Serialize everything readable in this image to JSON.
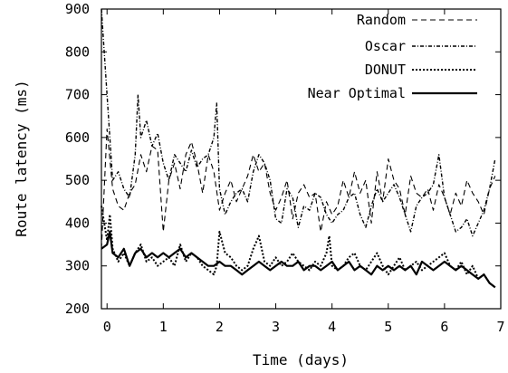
{
  "chart_data": {
    "type": "line",
    "title": "",
    "xlabel": "Time (days)",
    "ylabel": "Route latency (ms)",
    "xlim": [
      -0.1,
      7
    ],
    "ylim": [
      200,
      900
    ],
    "x_ticks": [
      "0",
      "1",
      "2",
      "3",
      "4",
      "5",
      "6",
      "7"
    ],
    "y_ticks": [
      "200",
      "300",
      "400",
      "500",
      "600",
      "700",
      "800",
      "900"
    ],
    "grid": false,
    "legend_position": "top-right",
    "series": [
      {
        "name": "Random",
        "style": "dashed",
        "x": [
          -0.1,
          0,
          0.1,
          0.2,
          0.3,
          0.4,
          0.5,
          0.6,
          0.7,
          0.8,
          0.9,
          1,
          1.1,
          1.2,
          1.3,
          1.4,
          1.5,
          1.6,
          1.7,
          1.8,
          1.9,
          2,
          2.1,
          2.2,
          2.3,
          2.4,
          2.5,
          2.6,
          2.7,
          2.8,
          2.9,
          3,
          3.1,
          3.2,
          3.3,
          3.4,
          3.5,
          3.6,
          3.7,
          3.8,
          3.9,
          4,
          4.1,
          4.2,
          4.3,
          4.4,
          4.5,
          4.6,
          4.7,
          4.8,
          4.9,
          5,
          5.1,
          5.2,
          5.3,
          5.4,
          5.5,
          5.6,
          5.7,
          5.8,
          5.9,
          6,
          6.1,
          6.2,
          6.3,
          6.4,
          6.5,
          6.6,
          6.7,
          6.8,
          6.9
        ],
        "y": [
          340,
          620,
          480,
          440,
          430,
          470,
          490,
          560,
          520,
          580,
          570,
          380,
          500,
          540,
          480,
          560,
          590,
          540,
          470,
          560,
          520,
          430,
          470,
          500,
          450,
          480,
          510,
          560,
          520,
          540,
          470,
          430,
          460,
          500,
          410,
          470,
          490,
          460,
          470,
          380,
          450,
          420,
          440,
          500,
          460,
          520,
          470,
          500,
          400,
          520,
          450,
          550,
          500,
          480,
          420,
          510,
          470,
          460,
          480,
          430,
          490,
          460,
          420,
          470,
          440,
          500,
          470,
          450,
          420,
          480,
          510
        ]
      },
      {
        "name": "Oscar",
        "style": "dash-dot",
        "x": [
          -0.1,
          -0.05,
          0,
          0.1,
          0.2,
          0.3,
          0.4,
          0.5,
          0.55,
          0.6,
          0.7,
          0.8,
          0.9,
          1,
          1.1,
          1.2,
          1.3,
          1.4,
          1.5,
          1.6,
          1.7,
          1.8,
          1.9,
          1.95,
          2,
          2.1,
          2.2,
          2.3,
          2.4,
          2.5,
          2.6,
          2.7,
          2.8,
          2.9,
          3,
          3.1,
          3.2,
          3.3,
          3.4,
          3.5,
          3.6,
          3.7,
          3.8,
          3.9,
          4,
          4.1,
          4.2,
          4.3,
          4.4,
          4.5,
          4.6,
          4.7,
          4.8,
          4.9,
          5,
          5.1,
          5.2,
          5.3,
          5.4,
          5.5,
          5.6,
          5.7,
          5.8,
          5.9,
          6,
          6.1,
          6.2,
          6.3,
          6.4,
          6.5,
          6.6,
          6.7,
          6.8,
          6.9
        ],
        "y": [
          900,
          800,
          700,
          500,
          520,
          480,
          460,
          560,
          700,
          600,
          640,
          580,
          610,
          540,
          500,
          560,
          540,
          520,
          570,
          530,
          550,
          560,
          600,
          680,
          480,
          420,
          450,
          470,
          480,
          450,
          520,
          560,
          540,
          500,
          410,
          400,
          480,
          460,
          390,
          440,
          430,
          470,
          460,
          420,
          400,
          420,
          430,
          460,
          470,
          420,
          390,
          440,
          480,
          450,
          470,
          490,
          460,
          420,
          380,
          440,
          460,
          470,
          490,
          560,
          460,
          420,
          380,
          390,
          410,
          370,
          400,
          430,
          480,
          550
        ]
      },
      {
        "name": "DONUT",
        "style": "dotted",
        "x": [
          -0.1,
          0,
          0.05,
          0.1,
          0.2,
          0.3,
          0.4,
          0.5,
          0.6,
          0.7,
          0.8,
          0.9,
          1,
          1.1,
          1.2,
          1.3,
          1.4,
          1.5,
          1.6,
          1.7,
          1.8,
          1.9,
          1.95,
          2,
          2.1,
          2.2,
          2.3,
          2.4,
          2.5,
          2.6,
          2.7,
          2.8,
          2.9,
          3,
          3.1,
          3.2,
          3.3,
          3.4,
          3.5,
          3.6,
          3.7,
          3.8,
          3.9,
          3.95,
          4,
          4.1,
          4.2,
          4.3,
          4.4,
          4.5,
          4.6,
          4.7,
          4.8,
          4.9,
          5,
          5.1,
          5.2,
          5.3,
          5.4,
          5.5,
          5.6,
          5.7,
          5.8,
          5.9,
          6,
          6.1,
          6.2,
          6.3,
          6.4,
          6.5,
          6.6,
          6.7,
          6.8,
          6.9
        ],
        "y": [
          440,
          360,
          420,
          340,
          310,
          330,
          300,
          330,
          350,
          310,
          320,
          300,
          310,
          320,
          300,
          350,
          310,
          330,
          320,
          300,
          290,
          280,
          300,
          380,
          330,
          320,
          300,
          290,
          300,
          340,
          370,
          310,
          300,
          320,
          300,
          310,
          330,
          310,
          300,
          290,
          310,
          300,
          330,
          370,
          300,
          290,
          300,
          320,
          330,
          300,
          290,
          310,
          330,
          300,
          280,
          300,
          320,
          290,
          300,
          310,
          290,
          300,
          310,
          320,
          330,
          300,
          290,
          310,
          280,
          300,
          270,
          280,
          260,
          250
        ]
      },
      {
        "name": "Near Optimal",
        "style": "solid",
        "x": [
          -0.1,
          0,
          0.05,
          0.1,
          0.2,
          0.3,
          0.4,
          0.5,
          0.6,
          0.7,
          0.8,
          0.9,
          1,
          1.1,
          1.2,
          1.3,
          1.4,
          1.5,
          1.6,
          1.7,
          1.8,
          1.9,
          2,
          2.1,
          2.2,
          2.3,
          2.4,
          2.5,
          2.6,
          2.7,
          2.8,
          2.9,
          3,
          3.1,
          3.2,
          3.3,
          3.4,
          3.5,
          3.6,
          3.7,
          3.8,
          3.9,
          4,
          4.1,
          4.2,
          4.3,
          4.4,
          4.5,
          4.6,
          4.7,
          4.8,
          4.9,
          5,
          5.1,
          5.2,
          5.3,
          5.4,
          5.5,
          5.6,
          5.7,
          5.8,
          5.9,
          6,
          6.1,
          6.2,
          6.3,
          6.4,
          6.5,
          6.6,
          6.7,
          6.8,
          6.9
        ],
        "y": [
          340,
          350,
          380,
          330,
          320,
          340,
          300,
          330,
          340,
          320,
          330,
          320,
          330,
          320,
          330,
          340,
          320,
          330,
          320,
          310,
          300,
          300,
          310,
          300,
          300,
          290,
          280,
          290,
          300,
          310,
          300,
          290,
          300,
          310,
          300,
          300,
          310,
          290,
          300,
          300,
          290,
          300,
          310,
          290,
          300,
          310,
          290,
          300,
          290,
          280,
          300,
          290,
          300,
          290,
          300,
          290,
          300,
          280,
          310,
          300,
          290,
          300,
          310,
          300,
          290,
          300,
          290,
          280,
          270,
          280,
          260,
          250
        ]
      }
    ]
  }
}
